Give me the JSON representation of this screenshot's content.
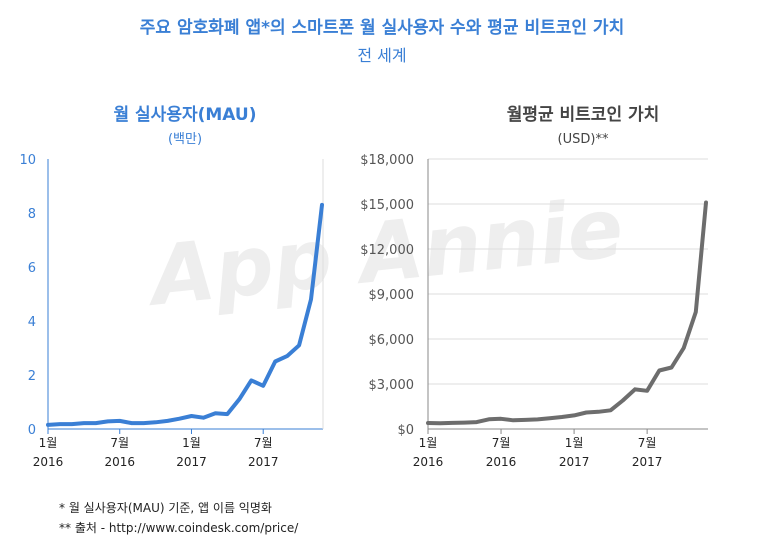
{
  "header": {
    "title": "주요 암호화폐 앱*의 스마트폰 월 실사용자 수와 평균 비트코인 가치",
    "subtitle": "전 세계"
  },
  "watermark": "App Annie",
  "footnotes": [
    "* 월 실사용자(MAU) 기준, 앱 이름 익명화",
    "** 출처 - http://www.coindesk.com/price/"
  ],
  "colors": {
    "title": "#3a7fd5",
    "mau_line": "#3a7fd5",
    "btc_line": "#6d6d6d",
    "axis_left": "#3a7fd5",
    "axis_right": "#555555"
  },
  "chart_data": [
    {
      "type": "line",
      "title": "월 실사용자(MAU)",
      "subtitle": "(백만)",
      "ylim": [
        0,
        10
      ],
      "yticks": [
        "0",
        "2",
        "4",
        "6",
        "8",
        "10"
      ],
      "xticks": [
        {
          "month": "1월",
          "year": "2016"
        },
        {
          "month": "7월",
          "year": "2016"
        },
        {
          "month": "1월",
          "year": "2017"
        },
        {
          "month": "7월",
          "year": "2017"
        }
      ],
      "x": [
        "2016-01",
        "2016-02",
        "2016-03",
        "2016-04",
        "2016-05",
        "2016-06",
        "2016-07",
        "2016-08",
        "2016-09",
        "2016-10",
        "2016-11",
        "2016-12",
        "2017-01",
        "2017-02",
        "2017-03",
        "2017-04",
        "2017-05",
        "2017-06",
        "2017-07",
        "2017-08",
        "2017-09",
        "2017-10",
        "2017-11",
        "2017-12"
      ],
      "values": [
        0.15,
        0.18,
        0.18,
        0.22,
        0.22,
        0.28,
        0.3,
        0.22,
        0.22,
        0.25,
        0.3,
        0.38,
        0.48,
        0.42,
        0.58,
        0.55,
        1.1,
        1.8,
        1.6,
        2.5,
        2.7,
        3.1,
        4.8,
        8.3
      ],
      "grid": false
    },
    {
      "type": "line",
      "title": "월평균 비트코인 가치",
      "subtitle": "(USD)**",
      "ylim": [
        0,
        18000
      ],
      "yticks": [
        "$0",
        "$3,000",
        "$6,000",
        "$9,000",
        "$12,000",
        "$15,000",
        "$18,000"
      ],
      "xticks": [
        {
          "month": "1월",
          "year": "2016"
        },
        {
          "month": "7월",
          "year": "2016"
        },
        {
          "month": "1월",
          "year": "2017"
        },
        {
          "month": "7월",
          "year": "2017"
        }
      ],
      "x": [
        "2016-01",
        "2016-02",
        "2016-03",
        "2016-04",
        "2016-05",
        "2016-06",
        "2016-07",
        "2016-08",
        "2016-09",
        "2016-10",
        "2016-11",
        "2016-12",
        "2017-01",
        "2017-02",
        "2017-03",
        "2017-04",
        "2017-05",
        "2017-06",
        "2017-07",
        "2017-08",
        "2017-09",
        "2017-10",
        "2017-11",
        "2017-12"
      ],
      "values": [
        400,
        380,
        410,
        430,
        460,
        650,
        680,
        580,
        610,
        640,
        720,
        800,
        910,
        1100,
        1150,
        1250,
        1900,
        2650,
        2550,
        3900,
        4100,
        5400,
        7800,
        15100
      ],
      "grid": true
    }
  ]
}
